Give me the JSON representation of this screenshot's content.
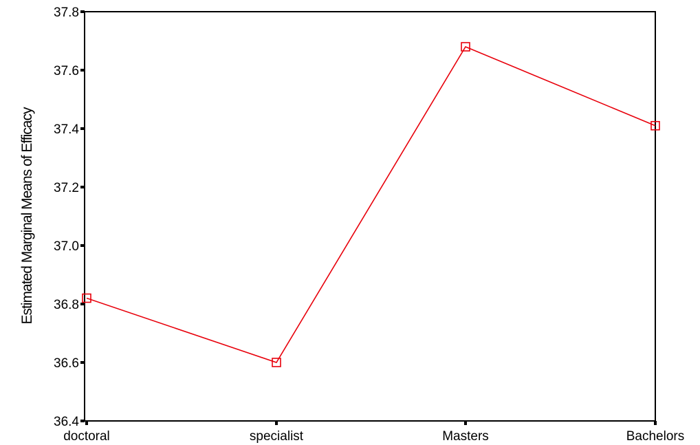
{
  "chart_data": {
    "type": "line",
    "title": "",
    "xlabel": "",
    "ylabel": "Estimated Marginal Means of Efficacy",
    "categories": [
      "doctoral",
      "specialist",
      "Masters",
      "Bachelors"
    ],
    "series": [
      {
        "values": [
          36.82,
          36.6,
          37.68,
          37.41
        ],
        "color": "#e8000b",
        "marker": "square-open"
      }
    ],
    "ylim": [
      36.4,
      37.8
    ],
    "yticks": [
      "36.4",
      "36.6",
      "36.8",
      "37.0",
      "37.2",
      "37.4",
      "37.6",
      "37.8"
    ],
    "grid": false,
    "legend": "none"
  }
}
